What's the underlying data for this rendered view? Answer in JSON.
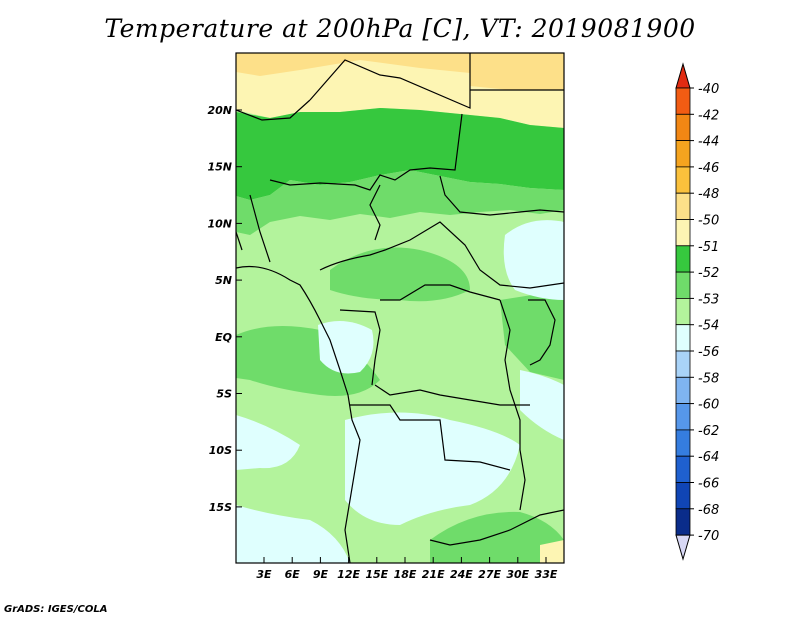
{
  "title": "Temperature at 200hPa [C], VT: 2019081900",
  "footer": "GrADS: IGES/COLA",
  "map": {
    "lat_labels": [
      "20N",
      "15N",
      "10N",
      "5N",
      "EQ",
      "5S",
      "10S",
      "15S"
    ],
    "lon_labels": [
      "3E",
      "6E",
      "9E",
      "12E",
      "15E",
      "18E",
      "21E",
      "24E",
      "27E",
      "30E",
      "33E"
    ]
  },
  "colorbar": {
    "labels": [
      "-40",
      "-42",
      "-44",
      "-46",
      "-48",
      "-50",
      "-51",
      "-52",
      "-53",
      "-54",
      "-56",
      "-58",
      "-60",
      "-62",
      "-64",
      "-66",
      "-68",
      "-70"
    ],
    "colors": [
      "#e12b12",
      "#f25c13",
      "#f28714",
      "#f5a41f",
      "#fbc13c",
      "#fde089",
      "#fdf5b3",
      "#36c83e",
      "#6fdc6a",
      "#b3f39c",
      "#dffffe",
      "#a9d3f8",
      "#7fb4f1",
      "#5697ea",
      "#357ddf",
      "#1f60cf",
      "#1045b5",
      "#0a2c8a",
      "#081a5e",
      "#d8d8f5"
    ]
  }
}
